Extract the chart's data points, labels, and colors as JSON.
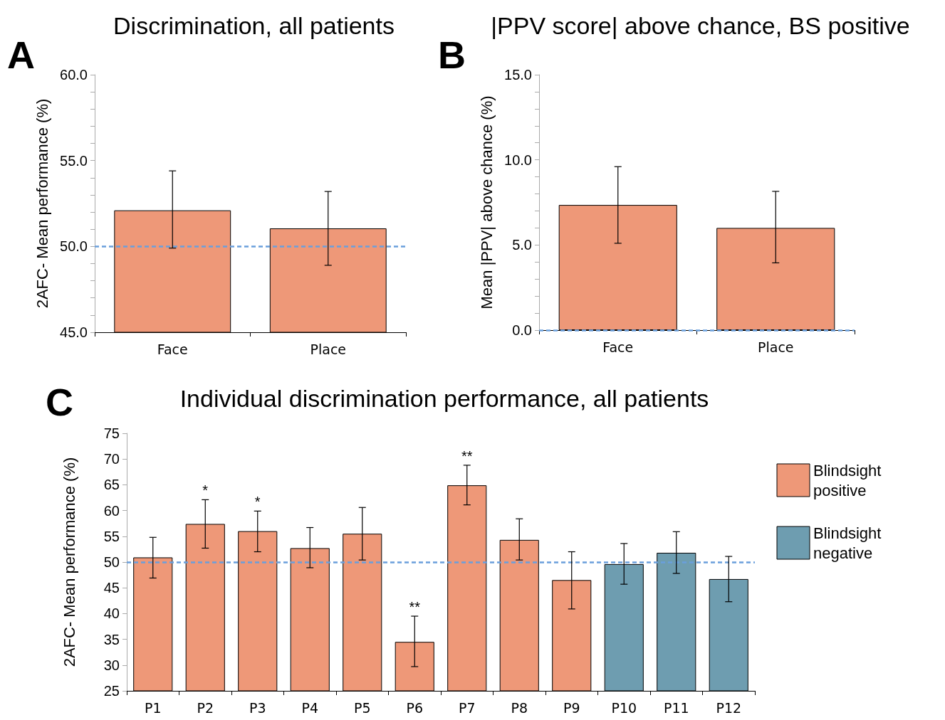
{
  "chart_data": [
    {
      "type": "bar",
      "title": "Discrimination, all patients",
      "ylabel": "2AFC- Mean performance (%)",
      "categories": [
        "Face",
        "Place"
      ],
      "series": [
        {
          "color": "#ee9878",
          "values": [
            52.1,
            51.05
          ],
          "errors": [
            [
              49.9,
              54.4
            ],
            [
              48.9,
              53.2
            ]
          ]
        }
      ],
      "ylim": [
        45,
        60
      ],
      "yticks": [
        {
          "value": 45,
          "label": "45.0"
        },
        {
          "value": 46,
          "label": null
        },
        {
          "value": 47,
          "label": null
        },
        {
          "value": 48,
          "label": null
        },
        {
          "value": 49,
          "label": null
        },
        {
          "value": 50,
          "label": "50.0"
        },
        {
          "value": 51,
          "label": null
        },
        {
          "value": 52,
          "label": null
        },
        {
          "value": 53,
          "label": null
        },
        {
          "value": 54,
          "label": null
        },
        {
          "value": 55,
          "label": "55.0"
        },
        {
          "value": 56,
          "label": null
        },
        {
          "value": 57,
          "label": null
        },
        {
          "value": 58,
          "label": null
        },
        {
          "value": 59,
          "label": null
        },
        {
          "value": 60,
          "label": "60.0"
        }
      ],
      "ref_lines": [
        {
          "axis": "y",
          "value": 50,
          "color": "#6a9fdc",
          "line_style": "dashed"
        }
      ],
      "annotations": [
        "A"
      ]
    },
    {
      "type": "bar",
      "title": "|PPV score| above chance, BS positive",
      "ylabel": "Mean |PPV| above chance (%)",
      "categories": [
        "Face",
        "Place"
      ],
      "series": [
        {
          "color": "#ee9878",
          "values": [
            7.35,
            6.0
          ],
          "errors": [
            [
              5.1,
              9.6
            ],
            [
              3.95,
              8.15
            ]
          ]
        }
      ],
      "ylim": [
        0,
        15
      ],
      "yticks": [
        {
          "value": 0,
          "label": "0.0"
        },
        {
          "value": 1,
          "label": null
        },
        {
          "value": 2,
          "label": null
        },
        {
          "value": 3,
          "label": null
        },
        {
          "value": 4,
          "label": null
        },
        {
          "value": 5,
          "label": "5.0"
        },
        {
          "value": 6,
          "label": null
        },
        {
          "value": 7,
          "label": null
        },
        {
          "value": 8,
          "label": null
        },
        {
          "value": 9,
          "label": null
        },
        {
          "value": 10,
          "label": "10.0"
        },
        {
          "value": 11,
          "label": null
        },
        {
          "value": 12,
          "label": null
        },
        {
          "value": 13,
          "label": null
        },
        {
          "value": 14,
          "label": null
        },
        {
          "value": 15,
          "label": "15.0"
        }
      ],
      "ref_lines": [
        {
          "axis": "y",
          "value": 0,
          "color": "#6a9fdc",
          "line_style": "dashed"
        }
      ],
      "annotations": [
        "B"
      ]
    },
    {
      "type": "bar",
      "title": "Individual discrimination performance, all patients",
      "ylabel": "2AFC- Mean performance (%)",
      "categories": [
        "P1",
        "P2",
        "P3",
        "P4",
        "P5",
        "P6",
        "P7",
        "P8",
        "P9",
        "P10",
        "P11",
        "P12"
      ],
      "series": [
        {
          "name": "Blindsight positive",
          "color": "#ee9878",
          "values": [
            50.9,
            57.4,
            56.0,
            52.7,
            55.5,
            34.5,
            64.9,
            54.3,
            46.5,
            null,
            null,
            null
          ],
          "errors": [
            [
              46.9,
              54.8
            ],
            [
              52.7,
              62.1
            ],
            [
              52.0,
              59.9
            ],
            [
              48.9,
              56.7
            ],
            [
              50.4,
              60.6
            ],
            [
              29.7,
              39.5
            ],
            [
              61.1,
              68.8
            ],
            [
              50.4,
              58.4
            ],
            [
              40.9,
              52.0
            ],
            null,
            null,
            null
          ]
        },
        {
          "name": "Blindsight negative",
          "color": "#6e9db0",
          "values": [
            null,
            null,
            null,
            null,
            null,
            null,
            null,
            null,
            null,
            49.6,
            51.8,
            46.7
          ],
          "errors": [
            null,
            null,
            null,
            null,
            null,
            null,
            null,
            null,
            null,
            [
              45.7,
              53.6
            ],
            [
              47.8,
              55.9
            ],
            [
              42.3,
              51.1
            ]
          ]
        }
      ],
      "ylim": [
        25,
        75
      ],
      "yticks": [
        25,
        30,
        35,
        40,
        45,
        50,
        55,
        60,
        65,
        70,
        75
      ],
      "ref_lines": [
        {
          "axis": "y",
          "value": 50,
          "color": "#6a9fdc",
          "line_style": "dashed"
        }
      ],
      "legend": "right",
      "annotations": [
        "C",
        {
          "text": "*",
          "x": "P2",
          "y": 62.1
        },
        {
          "text": "*",
          "x": "P3",
          "y": 59.9
        },
        {
          "text": "**",
          "x": "P6",
          "y": 39.5
        },
        {
          "text": "**",
          "x": "P7",
          "y": 68.8
        }
      ]
    }
  ]
}
